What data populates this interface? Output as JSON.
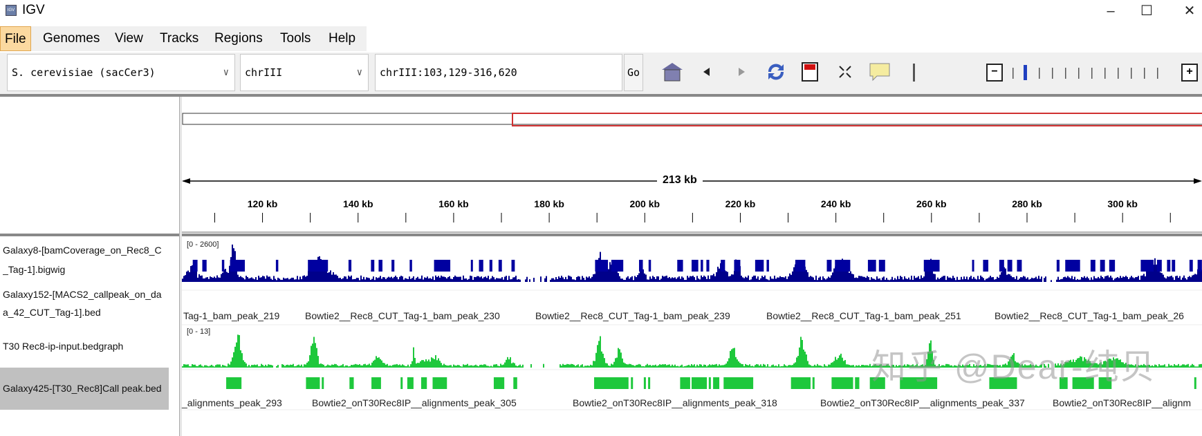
{
  "window": {
    "title": "IGV",
    "controls": [
      "–",
      "☐",
      "✕"
    ]
  },
  "menu": [
    "File",
    "Genomes",
    "View",
    "Tracks",
    "Regions",
    "Tools",
    "Help"
  ],
  "toolbar": {
    "genome": "S. cerevisiae (sacCer3)",
    "chromosome": "chrIII",
    "locus": "chrIII:103,129-316,620",
    "go_label": "Go"
  },
  "ruler": {
    "span_label": "213 kb",
    "ticks": [
      "120 kb",
      "140 kb",
      "160 kb",
      "180 kb",
      "200 kb",
      "220 kb",
      "240 kb",
      "260 kb",
      "280 kb",
      "300 kb"
    ]
  },
  "tracks": [
    {
      "name_line1": "Galaxy8-[bamCoverage_on_Rec8_C",
      "name_line2": "_Tag-1].bigwig",
      "range": "[0 - 2600]"
    },
    {
      "name_line1": "Galaxy152-[MACS2_callpeak_on_da",
      "name_line2": "a_42_CUT_Tag-1].bed",
      "labels": [
        "Tag-1_bam_peak_219",
        "Bowtie2__Rec8_CUT_Tag-1_bam_peak_230",
        "Bowtie2__Rec8_CUT_Tag-1_bam_peak_239",
        "Bowtie2__Rec8_CUT_Tag-1_bam_peak_251",
        "Bowtie2__Rec8_CUT_Tag-1_bam_peak_26"
      ]
    },
    {
      "name_line1": "T30 Rec8-ip-input.bedgraph",
      "range": "[0 - 13]"
    },
    {
      "name_line1": "Galaxy425-[T30_Rec8]Call peak.bed",
      "labels": [
        "_alignments_peak_293",
        "Bowtie2_onT30Rec8IP__alignments_peak_305",
        "Bowtie2_onT30Rec8IP__alignments_peak_318",
        "Bowtie2_onT30Rec8IP__alignments_peak_337",
        "Bowtie2_onT30Rec8IP__alignm"
      ]
    }
  ],
  "watermark": "知乎 @Dear-纯贝",
  "colors": {
    "bigwig": "#00008b",
    "bed1": "#0000a0",
    "bedgraph": "#1ec83c",
    "bed2": "#1ec83c",
    "ideogram_box": "#d03030"
  },
  "chart_data": {
    "type": "area",
    "view_kb": [
      103.129,
      316.62
    ],
    "bigwig": {
      "max": 2600,
      "baseline": 280,
      "peaks": [
        [
          105,
          700,
          1.2
        ],
        [
          113.8,
          2300,
          0.7
        ],
        [
          112,
          500,
          1
        ],
        [
          130.9,
          1500,
          1.3
        ],
        [
          133,
          700,
          1.5
        ],
        [
          190.4,
          1500,
          0.9
        ],
        [
          193,
          1000,
          1.2
        ],
        [
          199.2,
          800,
          0.6
        ],
        [
          219.3,
          1400,
          0.6
        ],
        [
          216,
          900,
          1.5
        ],
        [
          232.2,
          1200,
          1.5
        ],
        [
          241,
          1100,
          1.8
        ],
        [
          259.4,
          1200,
          0.8
        ],
        [
          275.2,
          600,
          0.8
        ],
        [
          306.5,
          1100,
          1.5
        ],
        [
          316,
          800,
          0.8
        ]
      ],
      "gaps": [
        [
          174,
          180
        ],
        [
          283,
          286
        ]
      ]
    },
    "bedgraph": {
      "max": 13,
      "baseline": 0.8,
      "peaks": [
        [
          114.6,
          12,
          0.9
        ],
        [
          130.6,
          10,
          0.8
        ],
        [
          144,
          3,
          1
        ],
        [
          151.5,
          5,
          0.3
        ],
        [
          154,
          2,
          1.5
        ],
        [
          156.2,
          2.5,
          1
        ],
        [
          171.3,
          2.5,
          1
        ],
        [
          190.4,
          9,
          0.9
        ],
        [
          194.5,
          5.5,
          0.8
        ],
        [
          218.3,
          7,
          0.9
        ],
        [
          232.7,
          9.5,
          0.9
        ],
        [
          240.5,
          3.5,
          1.2
        ],
        [
          259.6,
          7.5,
          0.6
        ],
        [
          276.8,
          4,
          0.8
        ],
        [
          291,
          2.5,
          3
        ],
        [
          298,
          2.5,
          2
        ]
      ],
      "gaps": [
        [
          122,
          124
        ],
        [
          174,
          182
        ],
        [
          283,
          286
        ]
      ]
    },
    "bed1_features": [
      [
        105.4,
        106.4
      ],
      [
        107.4,
        108.3
      ],
      [
        111.5,
        112.0
      ],
      [
        113.2,
        116.3
      ],
      [
        122.8,
        123.3
      ],
      [
        129.5,
        133.7
      ],
      [
        138.0,
        138.6
      ],
      [
        142.7,
        143.4
      ],
      [
        144.3,
        145.1
      ],
      [
        147.0,
        147.6
      ],
      [
        150.8,
        151.3
      ],
      [
        155.9,
        159.3
      ],
      [
        163.6,
        164.0
      ],
      [
        165.3,
        166.2
      ],
      [
        167.5,
        168.1
      ],
      [
        169.4,
        170.1
      ],
      [
        172.1,
        172.8
      ],
      [
        189.6,
        192.3
      ],
      [
        193.0,
        195.5
      ],
      [
        198.8,
        199.6
      ],
      [
        200.8,
        201.3
      ],
      [
        206.8,
        208
      ],
      [
        209.8,
        211.2
      ],
      [
        211.7,
        212.2
      ],
      [
        212.9,
        213.5
      ],
      [
        215.9,
        216.8
      ],
      [
        218.7,
        220.0
      ],
      [
        223.1,
        224.9
      ],
      [
        225.5,
        226.0
      ],
      [
        231.5,
        233.6
      ],
      [
        238.1,
        239.1
      ],
      [
        239.8,
        243.0
      ],
      [
        246.7,
        248.4
      ],
      [
        249.0,
        250.3
      ],
      [
        258.4,
        261.7
      ],
      [
        268.5,
        268.9
      ],
      [
        270.8,
        271.9
      ],
      [
        274.2,
        275.2
      ],
      [
        275.9,
        276.9
      ],
      [
        277.9,
        278.9
      ],
      [
        286.2,
        286.8
      ],
      [
        288.0,
        291.1
      ],
      [
        293.3,
        294.3
      ],
      [
        295.3,
        296.3
      ],
      [
        297.2,
        298.4
      ],
      [
        303.8,
        306.5
      ],
      [
        307.2,
        308.2
      ],
      [
        309.3,
        310.0
      ],
      [
        310.3,
        311.0
      ],
      [
        314.0,
        314.7
      ],
      [
        315.7,
        316.6
      ]
    ],
    "bed2_features": [
      [
        112.4,
        115.6
      ],
      [
        129.1,
        132.0
      ],
      [
        132.4,
        132.7
      ],
      [
        138.2,
        139.1
      ],
      [
        142.8,
        144.8
      ],
      [
        148.9,
        149.2
      ],
      [
        150.3,
        151.6
      ],
      [
        153.2,
        154.4
      ],
      [
        155.6,
        158.6
      ],
      [
        168.4,
        170.6
      ],
      [
        172.5,
        173.3
      ],
      [
        189.4,
        196.6
      ],
      [
        197.1,
        197.4
      ],
      [
        199.8,
        200.1
      ],
      [
        200.7,
        201.0
      ],
      [
        207.4,
        209.5
      ],
      [
        209.8,
        213.0
      ],
      [
        213.4,
        213.8
      ],
      [
        214.3,
        215.6
      ],
      [
        216.5,
        222.7
      ],
      [
        230.6,
        234.7
      ],
      [
        235.1,
        235.4
      ],
      [
        239.1,
        243.6
      ],
      [
        244.0,
        244.9
      ],
      [
        247.1,
        250.3
      ],
      [
        253.4,
        261.2
      ],
      [
        272.1,
        277.9
      ],
      [
        286.8,
        288.5
      ],
      [
        289.5,
        294.0
      ],
      [
        295.0,
        297.7
      ],
      [
        315.0,
        315.3
      ]
    ]
  }
}
